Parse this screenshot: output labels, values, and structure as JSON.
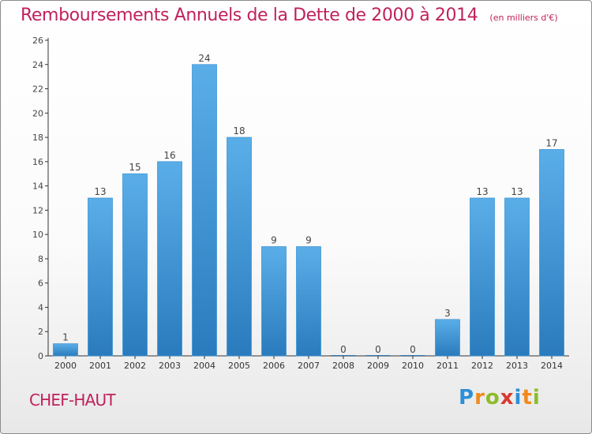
{
  "header": {
    "title": "Remboursements Annuels de la Dette de 2000 à 2014",
    "unit": "(en milliers d'€)"
  },
  "footer": {
    "city": "CHEF-HAUT",
    "brand": "Proxiti"
  },
  "colors": {
    "title": "#c0215c",
    "bar_light": "#5aaee8",
    "bar_dark": "#2a7bbd",
    "axis": "#333333"
  },
  "chart_data": {
    "type": "bar",
    "title": "Remboursements Annuels de la Dette de 2000 à 2014",
    "subtitle": "(en milliers d'€)",
    "xlabel": "",
    "ylabel": "",
    "categories": [
      "2000",
      "2001",
      "2002",
      "2003",
      "2004",
      "2005",
      "2006",
      "2007",
      "2008",
      "2009",
      "2010",
      "2011",
      "2012",
      "2013",
      "2014"
    ],
    "values": [
      1,
      13,
      15,
      16,
      24,
      18,
      9,
      9,
      0,
      0,
      0,
      3,
      13,
      13,
      17
    ],
    "data_labels": [
      "1",
      "13",
      "15",
      "16",
      "24",
      "18",
      "9",
      "9",
      "0",
      "0",
      "0",
      "3",
      "13",
      "13",
      "17"
    ],
    "ylim": [
      0,
      26
    ],
    "yticks": [
      0,
      2,
      4,
      6,
      8,
      10,
      12,
      14,
      16,
      18,
      20,
      22,
      24,
      26
    ],
    "grid": false,
    "legend": "none"
  }
}
